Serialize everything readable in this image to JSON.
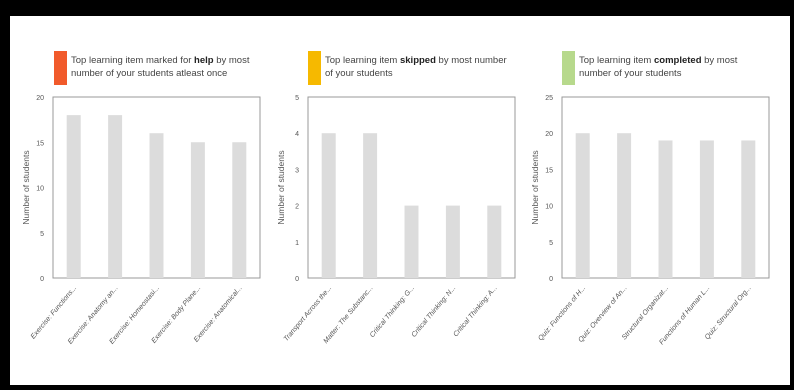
{
  "chart_data": [
    {
      "type": "bar",
      "legend": {
        "prefix": "Top learning item marked for ",
        "bold": "help",
        "suffix": " by most number of your students atleast once",
        "color": "#f15a2b"
      },
      "categories": [
        "Exercise: Functions...",
        "Exercise: Anatomy an...",
        "Exercise: Homeostasi...",
        "Exercise: Body Plane...",
        "Exercise: Anatomical..."
      ],
      "values": [
        18,
        18,
        16,
        15,
        15
      ],
      "ylabel": "Number of students",
      "ylim": [
        0,
        20
      ],
      "yticks": [
        0,
        5,
        10,
        15,
        20
      ],
      "bar_color": "#dcdcdc"
    },
    {
      "type": "bar",
      "legend": {
        "prefix": "Top learning item ",
        "bold": "skipped",
        "suffix": " by most number of your students",
        "color": "#f6b900"
      },
      "categories": [
        "Transport Across the...",
        "Matter: The Substanc...",
        "Critical Thinking: G...",
        "Critical Thinking: N...",
        "Critical Thinking: A..."
      ],
      "values": [
        4,
        4,
        2,
        2,
        2
      ],
      "ylabel": "Number of students",
      "ylim": [
        0,
        5
      ],
      "yticks": [
        0,
        1,
        2,
        3,
        4,
        5
      ],
      "bar_color": "#dcdcdc"
    },
    {
      "type": "bar",
      "legend": {
        "prefix": "Top learning item ",
        "bold": "completed",
        "suffix": " by most number of your students",
        "color": "#b7d98c"
      },
      "categories": [
        "Quiz: Functions of H...",
        "Quiz: Overview of An...",
        "Structural Organizat...",
        "Functions of Human L...",
        "Quiz: Structural Org..."
      ],
      "values": [
        20,
        20,
        19,
        19,
        19
      ],
      "ylabel": "Number of students",
      "ylim": [
        0,
        25
      ],
      "yticks": [
        0,
        5,
        10,
        15,
        20,
        25
      ],
      "bar_color": "#dcdcdc"
    }
  ]
}
